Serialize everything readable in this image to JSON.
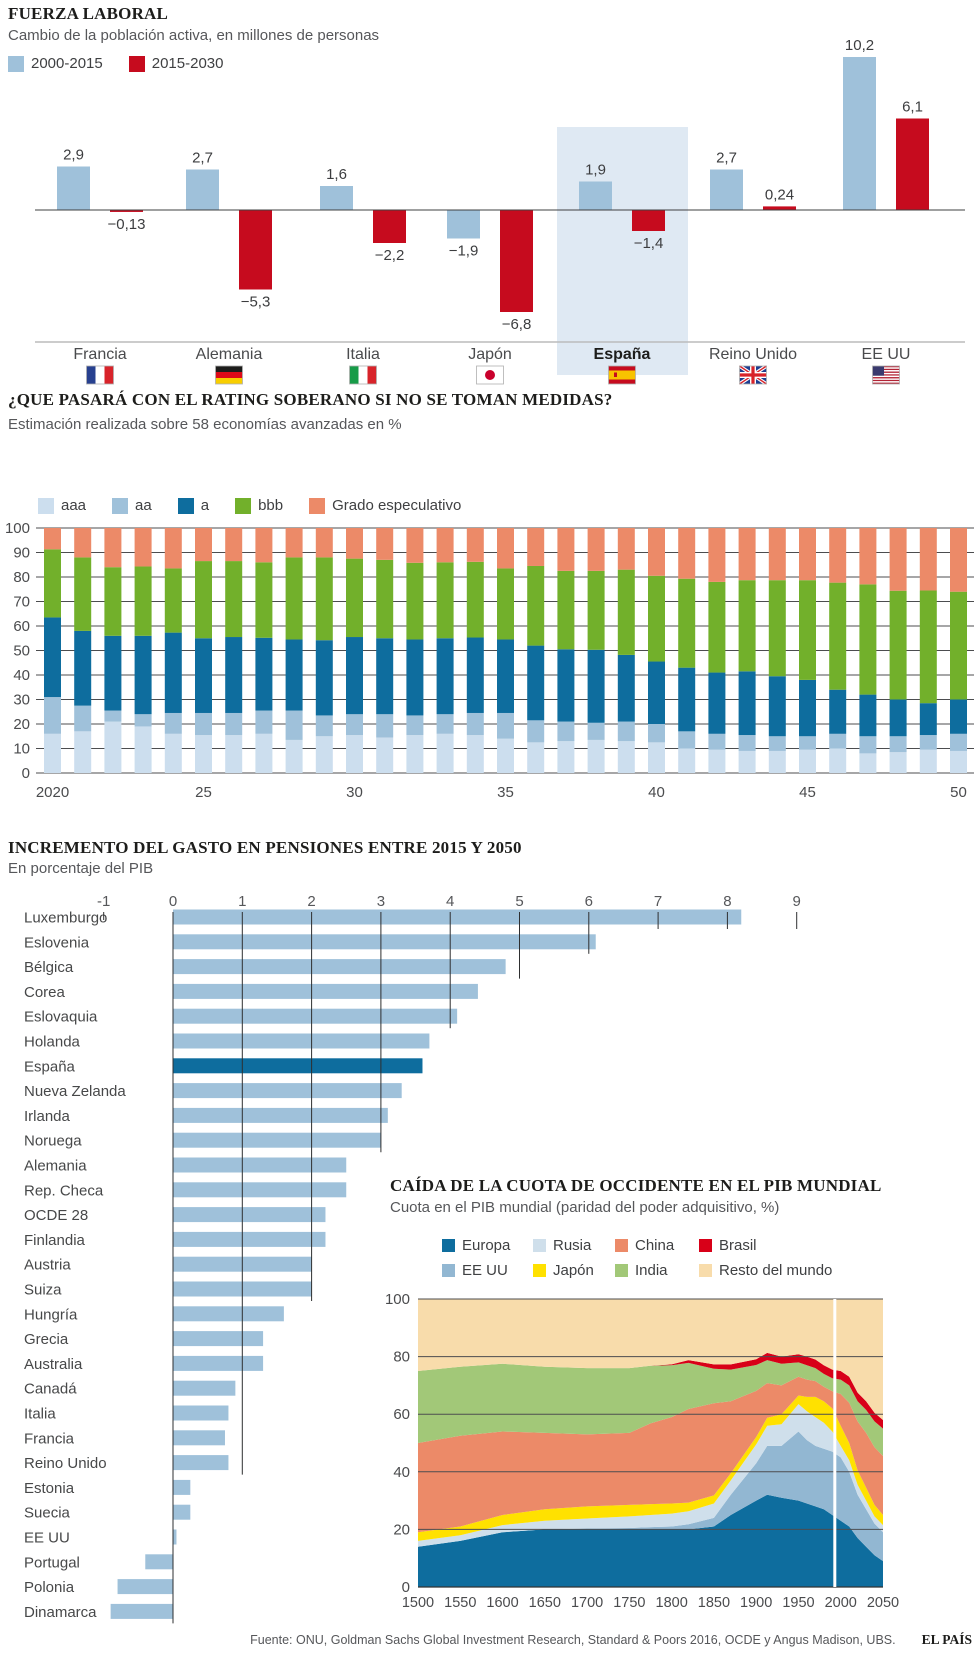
{
  "footer": {
    "source": "Fuente: ONU, Goldman Sachs Global Investment Research, Standard & Poors 2016, OCDE y Angus Madison, UBS.",
    "brand": "EL PAÍS"
  },
  "chart_data": [
    {
      "type": "bar",
      "title": "FUERZA LABORAL",
      "subtitle": "Cambio de la población activa, en millones de personas",
      "ylabel": "millones de personas",
      "legend": [
        {
          "label": "2000-2015",
          "color": "#9fc1da"
        },
        {
          "label": "2015-2030",
          "color": "#c60b1e"
        }
      ],
      "categories": [
        "Francia",
        "Alemania",
        "Italia",
        "Japón",
        "España",
        "Reino Unido",
        "EE UU"
      ],
      "flags": [
        "fr",
        "de",
        "it",
        "jp",
        "es",
        "gb",
        "us"
      ],
      "highlight_category": "España",
      "highlight_color": "#dfe9f3",
      "series": [
        {
          "name": "2000-2015",
          "color": "#9fc1da",
          "values": [
            2.9,
            2.7,
            1.6,
            -1.9,
            1.9,
            2.7,
            10.2
          ],
          "labels": [
            "2,9",
            "2,7",
            "1,6",
            "−1,9",
            "1,9",
            "2,7",
            "10,2"
          ]
        },
        {
          "name": "2015-2030",
          "color": "#c60b1e",
          "values": [
            -0.13,
            -5.3,
            -2.2,
            -6.8,
            -1.4,
            0.24,
            6.1
          ],
          "labels": [
            "−0,13",
            "−5,3",
            "−2,2",
            "−6,8",
            "−1,4",
            "0,24",
            "6,1"
          ]
        }
      ]
    },
    {
      "type": "stacked-bar",
      "title": "¿QUE PASARÁ CON EL RATING SOBERANO SI NO SE TOMAN MEDIDAS?",
      "subtitle": "Estimación realizada sobre 58 economías avanzadas en %",
      "x_start": 2020,
      "x_end": 2050,
      "x_ticks": [
        {
          "index": 0,
          "label": "2020"
        },
        {
          "index": 5,
          "label": "25"
        },
        {
          "index": 10,
          "label": "30"
        },
        {
          "index": 15,
          "label": "35"
        },
        {
          "index": 20,
          "label": "40"
        },
        {
          "index": 25,
          "label": "45"
        },
        {
          "index": 30,
          "label": "50"
        }
      ],
      "y_ticks": [
        0,
        10,
        20,
        30,
        40,
        50,
        60,
        70,
        80,
        90,
        100
      ],
      "ylim": [
        0,
        100
      ],
      "series": [
        {
          "name": "aaa",
          "color": "#ccdeee",
          "values": [
            16,
            17,
            21,
            19,
            16,
            15.5,
            15.5,
            16,
            13.5,
            15,
            15.5,
            14.5,
            15.5,
            16,
            15.5,
            14,
            12.5,
            13,
            13.5,
            13,
            12.5,
            10,
            9.5,
            9,
            9,
            9.5,
            10,
            8,
            8.5,
            9.5,
            9
          ]
        },
        {
          "name": "aa",
          "color": "#9fc1da",
          "values": [
            15,
            10.5,
            4.5,
            5,
            8.5,
            9,
            9,
            9.5,
            12,
            8.5,
            8.5,
            9.5,
            8,
            8,
            9,
            10.5,
            9,
            8,
            7,
            8,
            7.5,
            7,
            6.5,
            6.5,
            6,
            5.5,
            6,
            7,
            6.5,
            6,
            7
          ]
        },
        {
          "name": "a",
          "color": "#0e6d9e",
          "values": [
            32.5,
            30.5,
            30.5,
            32,
            32.8,
            30.5,
            31,
            29.7,
            29,
            30.7,
            31.5,
            31,
            31,
            31,
            30.8,
            30,
            30.5,
            29.5,
            29.8,
            27.2,
            25.5,
            26,
            25,
            26,
            24.5,
            23,
            18,
            17,
            15,
            13,
            14
          ]
        },
        {
          "name": "bbb",
          "color": "#72b02b",
          "values": [
            27.8,
            30,
            28,
            28.3,
            26.2,
            31.5,
            31,
            30.8,
            33.5,
            33.8,
            32,
            32,
            31.3,
            31,
            30.9,
            29,
            32.5,
            32,
            32.2,
            34.8,
            35,
            36.3,
            37,
            37.2,
            39.2,
            40.7,
            43.7,
            45,
            44.4,
            46,
            44
          ]
        },
        {
          "name": "Grado especulativo",
          "color": "#ec8a68",
          "values": [
            8.7,
            12,
            16,
            15.7,
            16.5,
            13.5,
            13.5,
            14,
            12,
            12,
            12.5,
            13,
            14.2,
            14,
            13.8,
            16.5,
            15.5,
            17.5,
            17.5,
            17,
            19.5,
            20.7,
            22,
            21.3,
            21.3,
            21.3,
            22.3,
            23,
            25.6,
            25.5,
            26
          ]
        }
      ]
    },
    {
      "type": "bar-horizontal",
      "title": "INCREMENTO DEL GASTO EN PENSIONES ENTRE 2015 Y 2050",
      "subtitle": "En porcentaje del PIB",
      "xlim": [
        -1,
        9
      ],
      "x_ticks": [
        "-1",
        "0",
        "1",
        "2",
        "3",
        "4",
        "5",
        "6",
        "7",
        "8",
        "9"
      ],
      "bar_color": "#9fc1da",
      "highlight_category": "España",
      "highlight_color": "#0e6d9e",
      "categories": [
        "Luxemburgo",
        "Eslovenia",
        "Bélgica",
        "Corea",
        "Eslovaquia",
        "Holanda",
        "España",
        "Nueva Zelanda",
        "Irlanda",
        "Noruega",
        "Alemania",
        "Rep. Checa",
        "OCDE 28",
        "Finlandia",
        "Austria",
        "Suiza",
        "Hungría",
        "Grecia",
        "Australia",
        "Canadá",
        "Italia",
        "Francia",
        "Reino Unido",
        "Estonia",
        "Suecia",
        "EE UU",
        "Portugal",
        "Polonia",
        "Dinamarca"
      ],
      "values": [
        8.2,
        6.1,
        4.8,
        4.4,
        4.1,
        3.7,
        3.6,
        3.3,
        3.1,
        3.0,
        2.5,
        2.5,
        2.2,
        2.2,
        2.0,
        2.0,
        1.6,
        1.3,
        1.3,
        0.9,
        0.8,
        0.75,
        0.8,
        0.25,
        0.25,
        0.05,
        -0.4,
        -0.8,
        -0.9
      ],
      "gridlines": [
        {
          "value": -1,
          "end_row": -1
        },
        {
          "value": 0,
          "end_row": 28
        },
        {
          "value": 1,
          "end_row": 22
        },
        {
          "value": 2,
          "end_row": 15
        },
        {
          "value": 3,
          "end_row": 9
        },
        {
          "value": 4,
          "end_row": 4
        },
        {
          "value": 5,
          "end_row": 2
        },
        {
          "value": 6,
          "end_row": 1
        },
        {
          "value": 7,
          "end_row": 0
        },
        {
          "value": 8,
          "end_row": 0
        },
        {
          "value": 9,
          "end_row": 0
        }
      ]
    },
    {
      "type": "area",
      "title": "CAÍDA DE LA CUOTA DE OCCIDENTE EN EL PIB MUNDIAL",
      "subtitle": "Cuota en el PIB mundial (paridad del poder adquisitivo, %)",
      "xlim": [
        1500,
        2050
      ],
      "x_tick_labels": [
        "1500",
        "1550",
        "1600",
        "1650",
        "1700",
        "1750",
        "1800",
        "1850",
        "1900",
        "1950",
        "2000",
        "2050"
      ],
      "y_ticks": [
        0,
        20,
        40,
        60,
        80,
        100
      ],
      "divider_line_year": 1993,
      "x": [
        1500,
        1550,
        1600,
        1650,
        1700,
        1750,
        1775,
        1800,
        1820,
        1850,
        1870,
        1900,
        1913,
        1930,
        1950,
        1960,
        1970,
        1980,
        1990,
        2000,
        2010,
        2020,
        2030,
        2040,
        2050
      ],
      "series": [
        {
          "name": "Europa",
          "color": "#0e6d9e",
          "values": [
            14,
            16,
            19,
            20,
            20,
            20,
            20,
            20,
            20,
            21,
            25,
            30,
            32,
            31,
            30,
            29,
            28,
            27,
            25,
            23,
            21,
            17,
            14,
            11,
            9
          ]
        },
        {
          "name": "EE UU",
          "color": "#92b7d2",
          "values": [
            0,
            0,
            0,
            0,
            0.3,
            0.5,
            0.8,
            1,
            1.8,
            3,
            7,
            13,
            17,
            18,
            24,
            22,
            21,
            21,
            22,
            22,
            19,
            15,
            13,
            11,
            10
          ]
        },
        {
          "name": "Rusia",
          "color": "#cfdfeb",
          "values": [
            2,
            2,
            2.5,
            3,
            3.5,
            4,
            4.2,
            4.5,
            4.5,
            5,
            5,
            6.5,
            7,
            7.5,
            9.5,
            10,
            10,
            9,
            7,
            4,
            4,
            3.5,
            3,
            2.5,
            2.5
          ]
        },
        {
          "name": "Japón",
          "color": "#ffe100",
          "values": [
            3,
            3,
            3.5,
            4,
            4.2,
            4,
            3.8,
            3.5,
            3,
            2.8,
            2.5,
            2.6,
            2.8,
            3.5,
            3,
            5,
            7,
            7.5,
            8,
            7,
            6,
            5,
            4.5,
            4,
            3.5
          ]
        },
        {
          "name": "China",
          "color": "#ec8a68",
          "values": [
            31,
            31.5,
            29,
            26.5,
            25,
            25,
            28,
            30,
            32.5,
            32,
            25,
            16,
            12,
            10,
            6.5,
            6,
            5.5,
            5,
            6,
            11,
            14,
            17,
            19,
            20,
            20.5
          ]
        },
        {
          "name": "India",
          "color": "#a2c878",
          "values": [
            25,
            24,
            23.5,
            23,
            23,
            22.5,
            20,
            18,
            16,
            12,
            11,
            9,
            8,
            7.5,
            5,
            5,
            4.5,
            4.5,
            4.5,
            5,
            6,
            7,
            8,
            9,
            9.5
          ]
        },
        {
          "name": "Brasil",
          "color": "#d80018",
          "values": [
            0,
            0,
            0,
            0,
            0,
            0,
            0,
            0.3,
            1,
            1.5,
            1.8,
            2,
            2.5,
            2.5,
            2.8,
            3,
            3,
            3,
            3,
            3,
            3,
            3,
            3,
            3,
            3
          ]
        },
        {
          "name": "Resto del mundo",
          "color": "#f8dcab",
          "values": [
            25,
            23.5,
            22.5,
            23.5,
            24,
            24,
            23.2,
            22.7,
            21.2,
            22.7,
            22.7,
            20.9,
            18.7,
            20,
            19.2,
            20,
            21,
            23,
            24.5,
            25,
            27,
            32.5,
            35.5,
            39.5,
            42
          ]
        }
      ]
    }
  ]
}
